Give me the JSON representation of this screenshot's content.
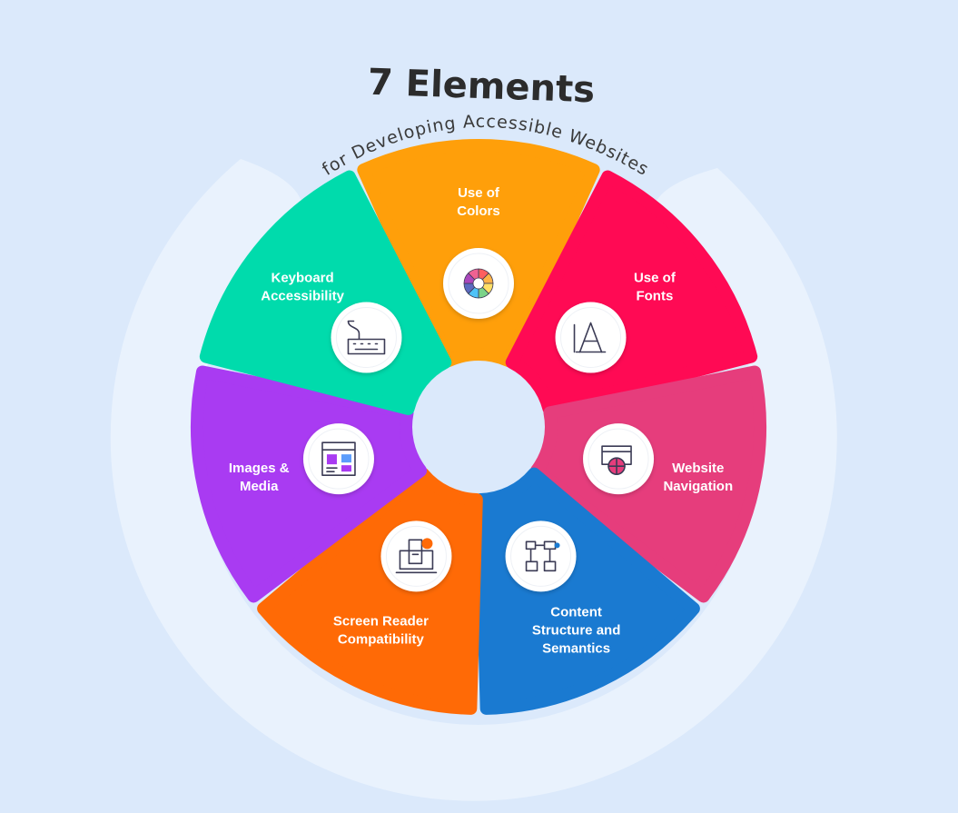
{
  "title": "7 Elements",
  "subtitle": "for Developing Accessible Websites",
  "segments": [
    {
      "label_lines": [
        "Use of",
        "Colors"
      ],
      "color": "#ff9f0a",
      "icon": "color-wheel-icon"
    },
    {
      "label_lines": [
        "Use of",
        "Fonts"
      ],
      "color": "#ff0a54",
      "icon": "font-letter-icon"
    },
    {
      "label_lines": [
        "Website",
        "Navigation"
      ],
      "color": "#e63d7c",
      "icon": "web-navigation-icon"
    },
    {
      "label_lines": [
        "Content",
        "Structure and",
        "Semantics"
      ],
      "color": "#1a7ad1",
      "icon": "sitemap-icon"
    },
    {
      "label_lines": [
        "Screen Reader",
        "Compatibility"
      ],
      "color": "#ff6a06",
      "icon": "screen-reader-icon"
    },
    {
      "label_lines": [
        "Images &",
        "Media"
      ],
      "color": "#a93bf2",
      "icon": "images-media-icon"
    },
    {
      "label_lines": [
        "Keyboard",
        "Accessibility"
      ],
      "color": "#00dbac",
      "icon": "keyboard-icon"
    }
  ],
  "colors": {
    "background": "#dbe9fb",
    "ring": "#e9f2fd",
    "title": "#2c2c2c"
  }
}
